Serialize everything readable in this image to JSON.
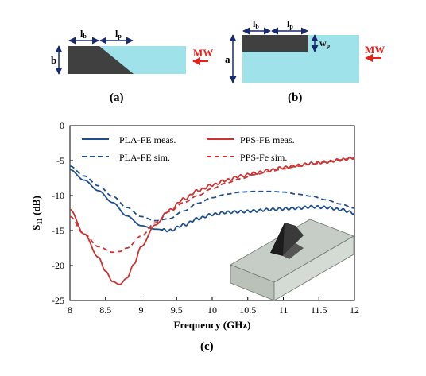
{
  "panel_a": {
    "caption": "(a)",
    "label_b": "b",
    "label_lb": "l",
    "label_lb_sub": "b",
    "label_lp": "l",
    "label_lp_sub": "p",
    "mw": "MW"
  },
  "panel_b": {
    "caption": "(b)",
    "label_a": "a",
    "label_lb": "l",
    "label_lb_sub": "b",
    "label_lp": "l",
    "label_lp_sub": "p",
    "label_wp": "w",
    "label_wp_sub": "p",
    "mw": "MW"
  },
  "panel_c": {
    "caption": "(c)"
  },
  "colors": {
    "waveguide": "#9fe2ea",
    "insert": "#404040",
    "mw_arrow": "#e8201a",
    "dim_arrow": "#1a2a6e",
    "pla": "#1f4e8c",
    "pps": "#cc3333"
  },
  "chart_data": {
    "type": "line",
    "xlabel": "Frequency (GHz)",
    "ylabel": "S",
    "ylabel_sub": "11",
    "ylabel_unit": " (dB)",
    "xlim": [
      8,
      12
    ],
    "ylim": [
      -25,
      0
    ],
    "xticks": [
      8,
      8.5,
      9,
      9.5,
      10,
      10.5,
      11,
      11.5,
      12
    ],
    "xtick_labels": [
      "8",
      "8.5",
      "9",
      "9.5",
      "10",
      "10.5",
      "11",
      "11.5",
      "12"
    ],
    "yticks": [
      0,
      -5,
      -10,
      -15,
      -20,
      -25
    ],
    "ytick_labels": [
      "0",
      "-5",
      "-10",
      "-15",
      "-20",
      "-25"
    ],
    "legend_position": "top",
    "grid": false,
    "series": [
      {
        "name": "PLA-FE meas.",
        "color": "#1f4e8c",
        "dash": false,
        "ripple": true,
        "x": [
          8.0,
          8.2,
          8.4,
          8.6,
          8.8,
          9.0,
          9.2,
          9.4,
          9.6,
          9.8,
          10.0,
          10.2,
          10.4,
          10.6,
          10.8,
          11.0,
          11.2,
          11.4,
          11.6,
          11.8,
          12.0
        ],
        "y": [
          -6.3,
          -7.8,
          -9.3,
          -11.0,
          -12.9,
          -14.3,
          -14.8,
          -15.0,
          -14.2,
          -13.3,
          -12.7,
          -12.4,
          -12.3,
          -12.2,
          -12.0,
          -11.9,
          -11.8,
          -11.6,
          -11.7,
          -12.0,
          -12.5
        ]
      },
      {
        "name": "PPS-FE meas.",
        "color": "#cc3333",
        "dash": false,
        "ripple": true,
        "x": [
          8.0,
          8.2,
          8.4,
          8.5,
          8.6,
          8.7,
          8.8,
          8.9,
          9.0,
          9.2,
          9.4,
          9.6,
          9.8,
          10.0,
          10.2,
          10.4,
          10.6,
          10.8,
          11.0,
          11.2,
          11.4,
          11.6,
          11.8,
          12.0
        ],
        "y": [
          -12.0,
          -15.5,
          -18.8,
          -20.8,
          -22.3,
          -22.7,
          -21.8,
          -19.8,
          -17.3,
          -14.2,
          -12.1,
          -10.5,
          -9.3,
          -8.5,
          -7.8,
          -7.2,
          -6.8,
          -6.4,
          -6.0,
          -5.7,
          -5.4,
          -5.2,
          -4.9,
          -4.6
        ]
      },
      {
        "name": "PLA-FE sim.",
        "color": "#1f4e8c",
        "dash": true,
        "ripple": false,
        "x": [
          8.0,
          8.2,
          8.4,
          8.6,
          8.8,
          9.0,
          9.2,
          9.4,
          9.6,
          9.8,
          10.0,
          10.2,
          10.4,
          10.6,
          10.8,
          11.0,
          11.2,
          11.4,
          11.6,
          11.8,
          12.0
        ],
        "y": [
          -5.8,
          -7.2,
          -8.6,
          -10.1,
          -11.7,
          -13.0,
          -13.6,
          -13.3,
          -12.2,
          -11.1,
          -10.3,
          -9.8,
          -9.5,
          -9.4,
          -9.4,
          -9.5,
          -9.8,
          -10.1,
          -10.6,
          -11.2,
          -11.8
        ]
      },
      {
        "name": "PPS-Fe sim.",
        "color": "#cc3333",
        "dash": true,
        "ripple": false,
        "x": [
          8.0,
          8.2,
          8.4,
          8.6,
          8.7,
          8.8,
          9.0,
          9.2,
          9.4,
          9.6,
          9.8,
          10.0,
          10.2,
          10.4,
          10.6,
          10.8,
          11.0,
          11.2,
          11.4,
          11.6,
          11.8,
          12.0
        ],
        "y": [
          -13.0,
          -15.5,
          -17.3,
          -18.1,
          -18.0,
          -17.5,
          -15.8,
          -13.9,
          -12.3,
          -11.0,
          -10.0,
          -9.0,
          -8.2,
          -7.6,
          -7.0,
          -6.6,
          -6.2,
          -5.8,
          -5.5,
          -5.2,
          -4.9,
          -4.6
        ]
      }
    ]
  }
}
